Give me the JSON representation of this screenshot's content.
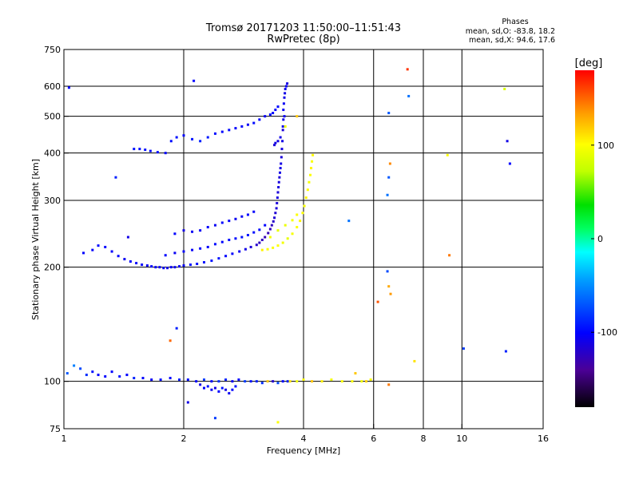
{
  "chart_data": {
    "type": "scatter",
    "title": "Tromsø 20171203 11:50:00–11:51:43",
    "subtitle": "RwPretec (8p)",
    "xlabel": "Frequency [MHz]",
    "ylabel": "Stationary phase Virtual Height [km]",
    "x_scale": "log",
    "y_scale": "log",
    "xlim": [
      1,
      16
    ],
    "ylim": [
      75,
      750
    ],
    "x_ticks": [
      1,
      2,
      4,
      6,
      8,
      10,
      16
    ],
    "x_tick_labels": [
      "1",
      "2",
      "4",
      "6",
      "8",
      "10",
      "16"
    ],
    "y_ticks": [
      75,
      100,
      200,
      300,
      400,
      500,
      600,
      750
    ],
    "y_tick_labels": [
      "75",
      "100",
      "200",
      "300",
      "400",
      "500",
      "600",
      "750"
    ],
    "x_grid": [
      2,
      4,
      6,
      8,
      10
    ],
    "y_grid": [
      100,
      200,
      300,
      400,
      500,
      600
    ],
    "grid": true,
    "phases_box": {
      "title": "Phases",
      "line_o": "mean, sd,O: -83.8, 18.2",
      "line_x": "mean, sd,X:  94.6, 17.6"
    },
    "colorbar": {
      "label": "[deg]",
      "range": [
        -180,
        180
      ],
      "ticks": [
        100,
        0,
        -100
      ],
      "tick_labels": [
        "100",
        "0",
        "-100"
      ]
    },
    "series": [
      {
        "x": [
          1.12,
          1.18,
          1.22,
          1.27,
          1.32,
          1.37,
          1.42,
          1.47,
          1.52,
          1.57,
          1.62,
          1.66,
          1.7,
          1.74,
          1.78,
          1.82,
          1.86,
          1.9,
          1.95,
          2.0,
          2.08,
          2.16,
          2.25,
          2.35,
          2.45,
          2.55,
          2.65,
          2.76,
          2.86,
          2.95,
          3.05
        ],
        "y": [
          218,
          222,
          228,
          226,
          220,
          214,
          210,
          207,
          205,
          203,
          202,
          201,
          200,
          200,
          199,
          199,
          200,
          200,
          201,
          202,
          203,
          204,
          206,
          208,
          211,
          214,
          217,
          220,
          223,
          226,
          229
        ],
        "phase": [
          -100,
          -102,
          -98,
          -100,
          -102,
          -100,
          -105,
          -101,
          -103,
          -100,
          -104,
          -102,
          -101,
          -103,
          -104,
          -108,
          -106,
          -104,
          -106,
          -104,
          -95,
          -97,
          -95,
          -95,
          -94,
          -100,
          -102,
          -105,
          -110,
          -115,
          -120
        ]
      },
      {
        "x": [
          3.1,
          3.15,
          3.2,
          3.26,
          3.3,
          3.33,
          3.36,
          3.38,
          3.4,
          3.42,
          3.43,
          3.44,
          3.45,
          3.46,
          3.47,
          3.48,
          3.49,
          3.5,
          3.51,
          3.52,
          3.53,
          3.54,
          3.55,
          3.56
        ],
        "y": [
          232,
          236,
          240,
          246,
          252,
          258,
          264,
          270,
          278,
          286,
          295,
          305,
          315,
          325,
          335,
          345,
          355,
          365,
          375,
          390,
          410,
          430,
          460,
          490
        ],
        "phase": [
          -125,
          -125,
          -128,
          -128,
          -126,
          -124,
          -120,
          -117,
          -117,
          -115,
          -115,
          -113,
          -115,
          -113,
          -113,
          -115,
          -110,
          -110,
          -111,
          -115,
          -112,
          -110,
          -115,
          -110
        ]
      },
      {
        "x": [
          3.56,
          3.57,
          3.58,
          3.59,
          3.6,
          3.62,
          3.64,
          3.58,
          3.55,
          3.5,
          3.45,
          3.4,
          3.38
        ],
        "y": [
          520,
          540,
          560,
          575,
          590,
          600,
          610,
          500,
          470,
          440,
          430,
          425,
          420
        ],
        "phase": [
          -105,
          -105,
          -110,
          -110,
          -108,
          -105,
          -112,
          -105,
          -108,
          -110,
          -112,
          -110,
          -115
        ]
      },
      {
        "x": [
          1.5,
          1.55,
          1.6,
          1.65,
          1.72,
          1.8,
          1.86,
          1.92,
          2.0,
          2.1,
          2.2,
          2.3,
          2.4,
          2.5,
          2.6,
          2.7,
          2.8,
          2.9,
          3.0,
          3.1,
          3.2,
          3.3,
          3.35,
          3.4,
          3.45
        ],
        "y": [
          410,
          410,
          408,
          405,
          402,
          400,
          430,
          440,
          445,
          435,
          430,
          440,
          450,
          455,
          460,
          465,
          470,
          475,
          480,
          490,
          500,
          505,
          510,
          520,
          530
        ],
        "phase": [
          -95,
          -96,
          -96,
          -98,
          -97,
          -100,
          -96,
          -95,
          -100,
          -94,
          -90,
          -92,
          -98,
          -100,
          -98,
          -102,
          -100,
          -105,
          -98,
          -102,
          -105,
          -96,
          -98,
          -100,
          -98
        ]
      },
      {
        "x": [
          1.8,
          1.9,
          2.0,
          2.1,
          2.2,
          2.3,
          2.4,
          2.5,
          2.6,
          2.7,
          2.8,
          2.9,
          3.0,
          3.1,
          3.2
        ],
        "y": [
          215,
          218,
          220,
          222,
          224,
          226,
          230,
          233,
          236,
          238,
          240,
          243,
          247,
          251,
          258
        ],
        "phase": [
          -100,
          -105,
          -100,
          -104,
          -100,
          -102,
          -98,
          -100,
          -96,
          -98,
          -96,
          -94,
          -96,
          -98,
          -100
        ]
      },
      {
        "x": [
          1.9,
          2.0,
          2.1,
          2.2,
          2.3,
          2.4,
          2.5,
          2.6,
          2.7,
          2.8,
          2.9,
          3.0
        ],
        "y": [
          245,
          250,
          248,
          250,
          255,
          258,
          262,
          265,
          268,
          272,
          275,
          280
        ],
        "phase": [
          -100,
          -110,
          -105,
          -104,
          -102,
          -105,
          -100,
          -102,
          -106,
          -104,
          -100,
          -102
        ]
      },
      {
        "x": [
          3.15,
          3.25,
          3.35,
          3.45,
          3.55,
          3.65,
          3.75,
          3.85,
          3.92,
          3.98,
          4.02,
          4.06,
          4.1,
          4.13,
          4.16,
          4.18,
          4.2,
          4.22
        ],
        "y": [
          222,
          223,
          225,
          228,
          232,
          238,
          245,
          255,
          265,
          278,
          290,
          305,
          320,
          335,
          350,
          365,
          380,
          395
        ],
        "phase": [
          105,
          102,
          98,
          100,
          95,
          90,
          96,
          100,
          104,
          100,
          98,
          106,
          102,
          96,
          100,
          104,
          98,
          102
        ]
      },
      {
        "x": [
          3.3,
          3.45,
          3.6,
          3.75,
          3.85
        ],
        "y": [
          240,
          250,
          258,
          266,
          275
        ],
        "phase": [
          95,
          90,
          92,
          96,
          100
        ]
      },
      {
        "x": [
          1.02,
          1.06,
          1.1,
          1.14,
          1.18,
          1.22,
          1.27,
          1.32,
          1.38,
          1.44,
          1.5,
          1.58,
          1.66,
          1.75,
          1.85,
          1.95,
          2.05,
          2.15,
          2.25,
          2.35,
          2.45,
          2.55,
          2.65,
          2.75,
          2.85,
          2.95,
          3.05,
          3.15,
          3.25,
          3.35,
          3.45,
          3.55,
          3.65
        ],
        "y": [
          105,
          110,
          108,
          104,
          106,
          104,
          103,
          106,
          103,
          104,
          102,
          102,
          101,
          101,
          102,
          101,
          101,
          100,
          101,
          100,
          100,
          101,
          100,
          101,
          100,
          100,
          100,
          99,
          100,
          100,
          99,
          100,
          100
        ],
        "phase": [
          -70,
          -55,
          -75,
          -85,
          -95,
          -100,
          -100,
          -100,
          -95,
          -100,
          -90,
          -100,
          -105,
          -95,
          -100,
          -90,
          -95,
          -100,
          -80,
          -100,
          -85,
          -90,
          -105,
          -100,
          -80,
          -95,
          -90,
          -85,
          120,
          -120,
          -75,
          -100,
          -90
        ]
      },
      {
        "x": [
          2.2,
          2.25,
          2.3,
          2.35,
          2.4,
          2.45,
          2.5,
          2.55,
          2.6,
          2.65,
          2.7
        ],
        "y": [
          98,
          96,
          97,
          95,
          96,
          94,
          96,
          95,
          93,
          95,
          97
        ],
        "phase": [
          -110,
          -100,
          -95,
          -105,
          -110,
          -100,
          -95,
          -110,
          -105,
          -100,
          -95
        ]
      },
      {
        "x": [
          3.7,
          3.85,
          4.0,
          4.2,
          4.45,
          4.7,
          5.0,
          5.3,
          5.6,
          5.9
        ],
        "y": [
          100,
          100,
          101,
          100,
          100,
          101,
          100,
          100,
          100,
          101
        ],
        "phase": [
          110,
          95,
          100,
          120,
          105,
          95,
          100,
          100,
          95,
          100
        ]
      },
      {
        "x": [
          1.03,
          1.35,
          1.45,
          1.85,
          2.05,
          2.12,
          1.92,
          2.4,
          3.85,
          3.6,
          5.2,
          6.55,
          6.6,
          7.3,
          7.35,
          9.2,
          9.3,
          12.8,
          13.0,
          13.2,
          6.55,
          6.5,
          6.5,
          6.55,
          6.62,
          7.6,
          10.1,
          12.9,
          6.15,
          6.55,
          3.45,
          5.4,
          5.75
        ],
        "y": [
          595,
          345,
          240,
          128,
          88,
          620,
          138,
          80,
          500,
          470,
          265,
          510,
          375,
          665,
          565,
          395,
          215,
          590,
          430,
          375,
          345,
          310,
          195,
          178,
          170,
          113,
          122,
          120,
          162,
          98,
          78,
          105,
          100
        ],
        "phase": [
          -100,
          -90,
          -110,
          150,
          -110,
          -100,
          -90,
          -80,
          120,
          95,
          -60,
          -70,
          140,
          165,
          -60,
          100,
          145,
          85,
          -110,
          -100,
          -70,
          -60,
          -75,
          130,
          135,
          110,
          -80,
          -90,
          155,
          145,
          100,
          120,
          115
        ]
      }
    ]
  }
}
